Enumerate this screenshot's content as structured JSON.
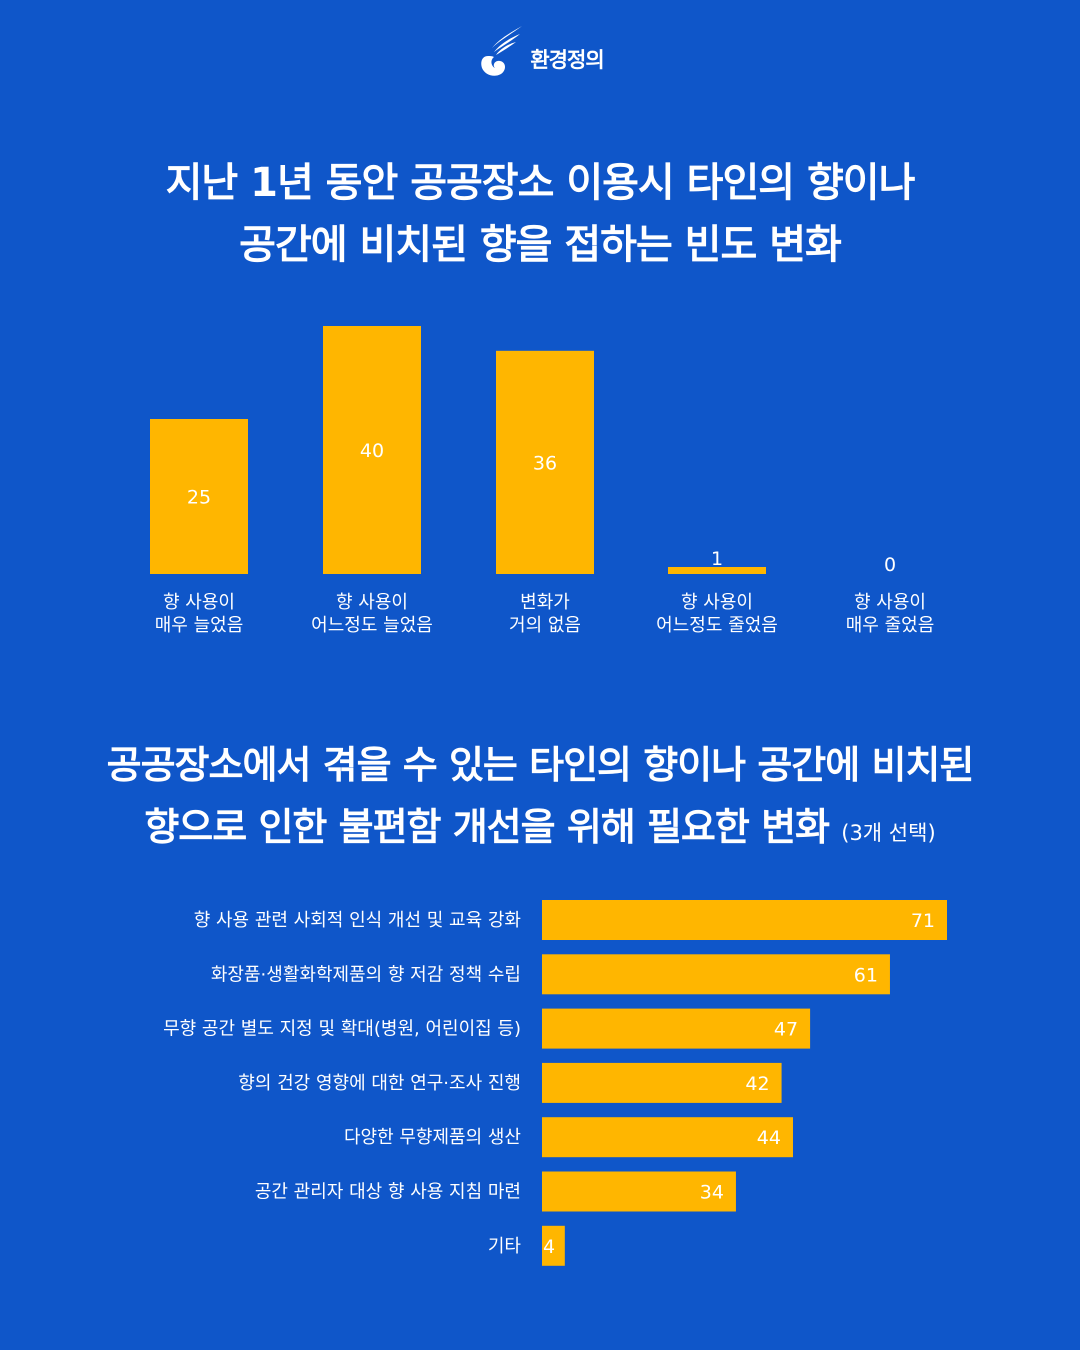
{
  "brand": {
    "logo_text": "환경정의",
    "logo_icon": "bird-swirl-icon"
  },
  "colors": {
    "background": "#0F56C9",
    "bar": "#FFB600",
    "text": "#FFFFFF"
  },
  "chart_data": [
    {
      "type": "bar",
      "title_lines": [
        "지난 1년 동안 공공장소 이용시 타인의 향이나",
        "공간에 비치된 향을 접하는 빈도 변화"
      ],
      "categories": [
        [
          "향 사용이",
          "매우 늘었음"
        ],
        [
          "향 사용이",
          "어느정도 늘었음"
        ],
        [
          "변화가",
          "거의 없음"
        ],
        [
          "향 사용이",
          "어느정도 줄었음"
        ],
        [
          "향 사용이",
          "매우 줄었음"
        ]
      ],
      "values": [
        25,
        40,
        36,
        1,
        0
      ],
      "ylim": [
        0,
        40
      ],
      "data_labels": true,
      "grid": false,
      "legend": "none"
    },
    {
      "type": "bar",
      "orientation": "horizontal",
      "title_lines": [
        "공공장소에서 겪을 수 있는 타인의 향이나 공간에 비치된",
        "향으로 인한 불편함 개선을 위해 필요한 변화"
      ],
      "title_note": "(3개 선택)",
      "categories": [
        "향 사용 관련 사회적 인식 개선 및 교육 강화",
        "화장품·생활화학제품의 향 저감 정책 수립",
        "무향 공간 별도 지정 및 확대(병원, 어린이집 등)",
        "향의 건강 영향에 대한 연구·조사 진행",
        "다양한 무향제품의 생산",
        "공간 관리자 대상 향 사용 지침 마련",
        "기타"
      ],
      "values": [
        71,
        61,
        47,
        42,
        44,
        34,
        4
      ],
      "xlim": [
        0,
        71
      ],
      "data_labels": true,
      "grid": false,
      "legend": "none"
    }
  ]
}
